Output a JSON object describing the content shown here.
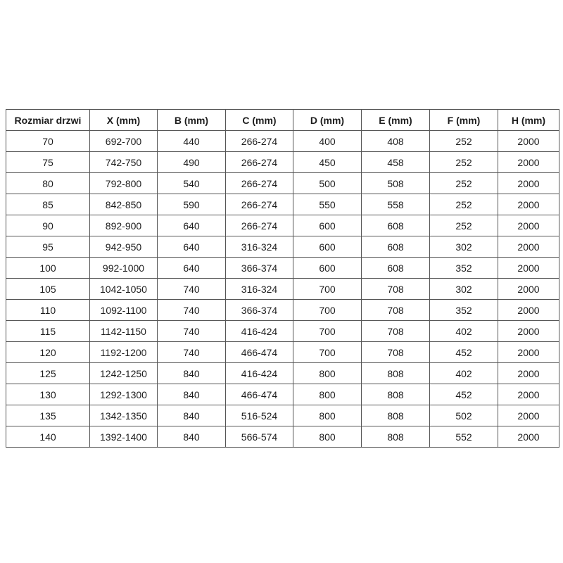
{
  "table": {
    "name": "door-size-specification",
    "headers": [
      "Rozmiar drzwi",
      "X (mm)",
      "B (mm)",
      "C (mm)",
      "D (mm)",
      "E (mm)",
      "F (mm)",
      "H (mm)"
    ],
    "rows": [
      [
        "70",
        "692-700",
        "440",
        "266-274",
        "400",
        "408",
        "252",
        "2000"
      ],
      [
        "75",
        "742-750",
        "490",
        "266-274",
        "450",
        "458",
        "252",
        "2000"
      ],
      [
        "80",
        "792-800",
        "540",
        "266-274",
        "500",
        "508",
        "252",
        "2000"
      ],
      [
        "85",
        "842-850",
        "590",
        "266-274",
        "550",
        "558",
        "252",
        "2000"
      ],
      [
        "90",
        "892-900",
        "640",
        "266-274",
        "600",
        "608",
        "252",
        "2000"
      ],
      [
        "95",
        "942-950",
        "640",
        "316-324",
        "600",
        "608",
        "302",
        "2000"
      ],
      [
        "100",
        "992-1000",
        "640",
        "366-374",
        "600",
        "608",
        "352",
        "2000"
      ],
      [
        "105",
        "1042-1050",
        "740",
        "316-324",
        "700",
        "708",
        "302",
        "2000"
      ],
      [
        "110",
        "1092-1100",
        "740",
        "366-374",
        "700",
        "708",
        "352",
        "2000"
      ],
      [
        "115",
        "1142-1150",
        "740",
        "416-424",
        "700",
        "708",
        "402",
        "2000"
      ],
      [
        "120",
        "1192-1200",
        "740",
        "466-474",
        "700",
        "708",
        "452",
        "2000"
      ],
      [
        "125",
        "1242-1250",
        "840",
        "416-424",
        "800",
        "808",
        "402",
        "2000"
      ],
      [
        "130",
        "1292-1300",
        "840",
        "466-474",
        "800",
        "808",
        "452",
        "2000"
      ],
      [
        "135",
        "1342-1350",
        "840",
        "516-524",
        "800",
        "808",
        "502",
        "2000"
      ],
      [
        "140",
        "1392-1400",
        "840",
        "566-574",
        "800",
        "808",
        "552",
        "2000"
      ]
    ],
    "colors": {
      "border": "#555555",
      "text": "#1d1d1d",
      "background": "#ffffff"
    }
  }
}
